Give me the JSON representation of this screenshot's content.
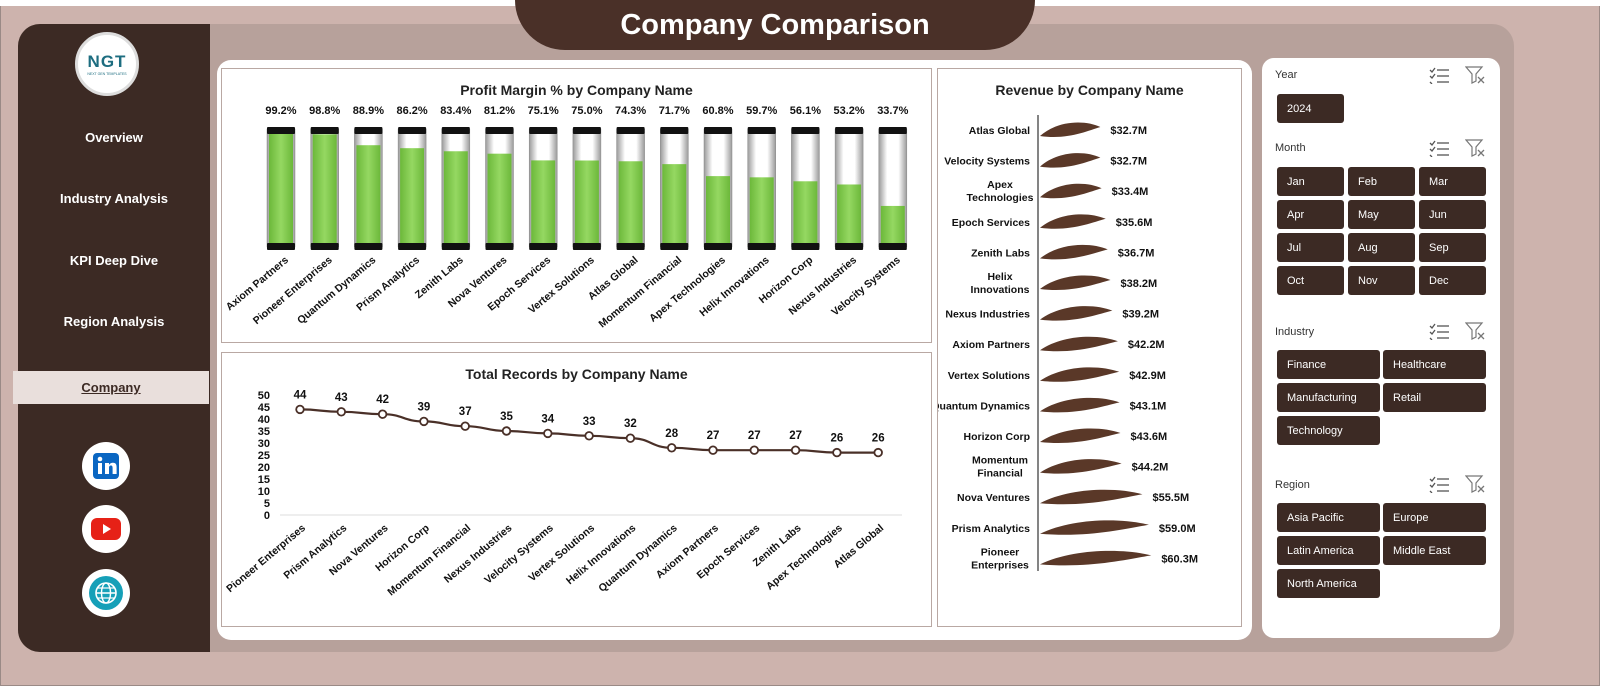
{
  "app": {
    "title": "Company Comparison",
    "logo": "NGT",
    "logo_sub": "NEXT GEN TEMPLATES"
  },
  "sidebar": {
    "items": [
      {
        "label": "Overview"
      },
      {
        "label": "Industry Analysis"
      },
      {
        "label": "KPI Deep Dive"
      },
      {
        "label": "Region Analysis"
      },
      {
        "label": "Company"
      }
    ],
    "social": [
      {
        "icon": "linkedin-icon"
      },
      {
        "icon": "youtube-icon"
      },
      {
        "icon": "globe-icon"
      }
    ]
  },
  "slicers": {
    "year": {
      "label": "Year",
      "items": [
        "2024"
      ]
    },
    "month": {
      "label": "Month",
      "items": [
        "Jan",
        "Feb",
        "Mar",
        "Apr",
        "May",
        "Jun",
        "Jul",
        "Aug",
        "Sep",
        "Oct",
        "Nov",
        "Dec"
      ]
    },
    "industry": {
      "label": "Industry",
      "items": [
        "Finance",
        "Healthcare",
        "Manufacturing",
        "Retail",
        "Technology"
      ]
    },
    "region": {
      "label": "Region",
      "items": [
        "Asia Pacific",
        "Europe",
        "Latin America",
        "Middle East",
        "North America"
      ]
    }
  },
  "colors": {
    "brown": "#3c2a24",
    "green": "#8fd35a",
    "line": "#4a3028"
  },
  "chart_data": [
    {
      "type": "bar",
      "title": "Profit Margin % by Company Name",
      "categories": [
        "Axiom Partners",
        "Pioneer Enterprises",
        "Quantum Dynamics",
        "Prism Analytics",
        "Zenith Labs",
        "Nova Ventures",
        "Epoch Services",
        "Vertex Solutions",
        "Atlas Global",
        "Momentum Financial",
        "Apex Technologies",
        "Helix Innovations",
        "Horizon Corp",
        "Nexus Industries",
        "Velocity Systems"
      ],
      "values": [
        99.2,
        98.8,
        88.9,
        86.2,
        83.4,
        81.2,
        75.1,
        75.0,
        74.3,
        71.7,
        60.8,
        59.7,
        56.1,
        53.2,
        33.7
      ],
      "labels": [
        "99.2%",
        "98.8%",
        "88.9%",
        "86.2%",
        "83.4%",
        "81.2%",
        "75.1%",
        "75.0%",
        "74.3%",
        "71.7%",
        "60.8%",
        "59.7%",
        "56.1%",
        "53.2%",
        "33.7%"
      ],
      "ylim": [
        0,
        100
      ]
    },
    {
      "type": "line",
      "title": "Total Records by Company Name",
      "categories": [
        "Pioneer Enterprises",
        "Prism Analytics",
        "Nova Ventures",
        "Horizon Corp",
        "Momentum Financial",
        "Nexus Industries",
        "Velocity Systems",
        "Vertex Solutions",
        "Helix Innovations",
        "Quantum Dynamics",
        "Axiom Partners",
        "Epoch Services",
        "Zenith Labs",
        "Apex Technologies",
        "Atlas Global"
      ],
      "values": [
        44,
        43,
        42,
        39,
        37,
        35,
        34,
        33,
        32,
        28,
        27,
        27,
        27,
        26,
        26
      ],
      "yticks": [
        "50",
        "45",
        "40",
        "35",
        "30",
        "25",
        "20",
        "15",
        "10",
        "5",
        "0"
      ],
      "ylim": [
        0,
        50
      ]
    },
    {
      "type": "bar",
      "title": "Revenue  by Company Name",
      "categories": [
        "Atlas Global",
        "Velocity Systems",
        "Apex Technologies",
        "Epoch Services",
        "Zenith Labs",
        "Helix Innovations",
        "Nexus Industries",
        "Axiom Partners",
        "Vertex Solutions",
        "Quantum Dynamics",
        "Horizon Corp",
        "Momentum Financial",
        "Nova Ventures",
        "Prism Analytics",
        "Pioneer Enterprises"
      ],
      "values": [
        32.7,
        32.7,
        33.4,
        35.6,
        36.7,
        38.2,
        39.2,
        42.2,
        42.9,
        43.1,
        43.6,
        44.2,
        55.5,
        59.0,
        60.3
      ],
      "labels": [
        "$32.7M",
        "$32.7M",
        "$33.4M",
        "$35.6M",
        "$36.7M",
        "$38.2M",
        "$39.2M",
        "$42.2M",
        "$42.9M",
        "$43.1M",
        "$43.6M",
        "$44.2M",
        "$55.5M",
        "$59.0M",
        "$60.3M"
      ],
      "orientation": "horizontal"
    }
  ]
}
